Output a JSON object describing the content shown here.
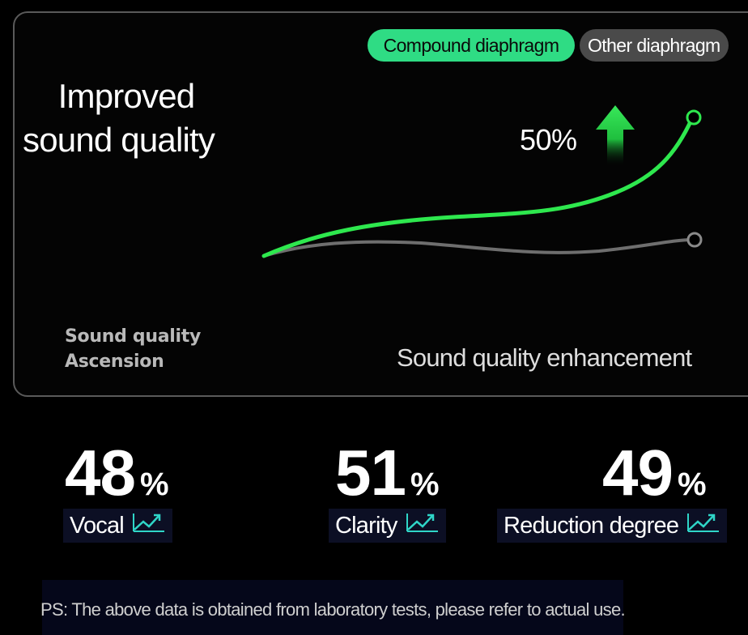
{
  "legend": {
    "active_label": "Compound diaphragm",
    "inactive_label": "Other diaphragm",
    "active_color": "#2fdc84",
    "inactive_color": "#4a4a4a"
  },
  "headline": {
    "line1": "Improved",
    "line2": "sound quality"
  },
  "callout": {
    "percent": "50%",
    "arrow_color": "#22d04a"
  },
  "chart": {
    "compound_line_color": "#2ee84e",
    "other_line_color": "#6e6e6e",
    "icon": "up-arrow-icon"
  },
  "subtitle_left": {
    "line1": "Sound quality",
    "line2": "Ascension"
  },
  "subtitle_right": "Sound quality enhancement",
  "stats": [
    {
      "value": "48",
      "unit": "%",
      "label": "Vocal",
      "icon": "trend-up-icon"
    },
    {
      "value": "51",
      "unit": "%",
      "label": "Clarity",
      "icon": "trend-up-icon"
    },
    {
      "value": "49",
      "unit": "%",
      "label": "Reduction degree",
      "icon": "trend-up-icon"
    }
  ],
  "trend_icon_color": "#2fd6c8",
  "footer": "PS: The above data is obtained from laboratory tests, please refer to actual use."
}
